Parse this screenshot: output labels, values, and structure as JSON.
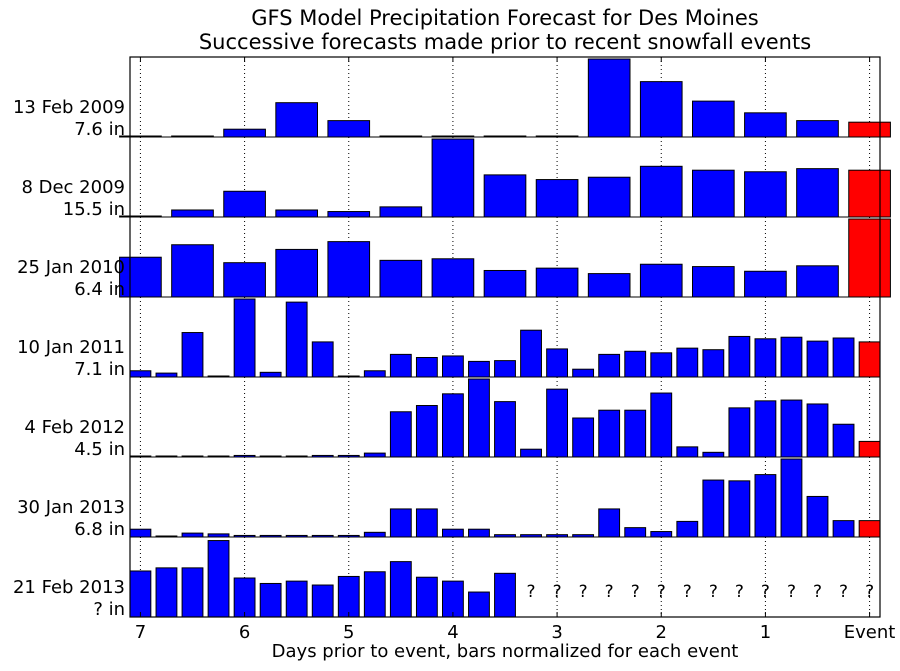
{
  "chart_data": {
    "type": "bar",
    "title": "GFS Model Precipitation Forecast for Des Moines",
    "subtitle": "Successive forecasts made prior to recent snowfall events",
    "xlabel": "Days prior to event, bars normalized for each event",
    "x_ticks": [
      "7",
      "6",
      "5",
      "4",
      "3",
      "2",
      "1",
      "Event"
    ],
    "x_tick_positions": [
      7,
      6,
      5,
      4,
      3,
      2,
      1,
      0
    ],
    "xlim": [
      7.1,
      -0.1
    ],
    "grid": "vertical dotted",
    "bar_colors": {
      "forecast": "#0000ff",
      "event": "#ff0000"
    },
    "missing_marker": "?",
    "panels": [
      {
        "name": "13 Feb 2009",
        "amount": "7.6 in",
        "x": [
          7.0,
          6.5,
          6.0,
          5.5,
          5.0,
          4.5,
          4.0,
          3.5,
          3.0,
          2.5,
          2.0,
          1.5,
          1.0,
          0.5,
          0.0
        ],
        "values": [
          0.01,
          0.01,
          0.1,
          0.44,
          0.21,
          0.01,
          0.01,
          0.01,
          0.01,
          1.0,
          0.71,
          0.46,
          0.31,
          0.21,
          0.19
        ]
      },
      {
        "name": "8 Dec 2009",
        "amount": "15.5 in",
        "x": [
          7.0,
          6.5,
          6.0,
          5.5,
          5.0,
          4.5,
          4.0,
          3.5,
          3.0,
          2.5,
          2.0,
          1.5,
          1.0,
          0.5,
          0.0
        ],
        "values": [
          0.01,
          0.09,
          0.33,
          0.09,
          0.07,
          0.13,
          1.0,
          0.54,
          0.48,
          0.51,
          0.65,
          0.6,
          0.58,
          0.62,
          0.6
        ]
      },
      {
        "name": "25 Jan 2010",
        "amount": "6.4 in",
        "x": [
          7.0,
          6.5,
          6.0,
          5.5,
          5.0,
          4.5,
          4.0,
          3.5,
          3.0,
          2.5,
          2.0,
          1.5,
          1.0,
          0.5,
          0.0
        ],
        "values": [
          0.51,
          0.67,
          0.44,
          0.61,
          0.71,
          0.47,
          0.49,
          0.34,
          0.37,
          0.3,
          0.42,
          0.39,
          0.33,
          0.4,
          1.0
        ]
      },
      {
        "name": "10 Jan 2011",
        "amount": "7.1 in",
        "x": [
          7.0,
          6.75,
          6.5,
          6.25,
          6.0,
          5.75,
          5.5,
          5.25,
          5.0,
          4.75,
          4.5,
          4.25,
          4.0,
          3.75,
          3.5,
          3.25,
          3.0,
          2.75,
          2.5,
          2.25,
          2.0,
          1.75,
          1.5,
          1.25,
          1.0,
          0.75,
          0.5,
          0.25,
          0.0
        ],
        "values": [
          0.08,
          0.05,
          0.57,
          0.01,
          1.0,
          0.06,
          0.96,
          0.45,
          0.01,
          0.08,
          0.29,
          0.25,
          0.27,
          0.2,
          0.21,
          0.6,
          0.36,
          0.1,
          0.29,
          0.33,
          0.31,
          0.37,
          0.35,
          0.52,
          0.49,
          0.51,
          0.46,
          0.5,
          0.45
        ]
      },
      {
        "name": "4 Feb 2012",
        "amount": "4.5 in",
        "x": [
          7.0,
          6.75,
          6.5,
          6.25,
          6.0,
          5.75,
          5.5,
          5.25,
          5.0,
          4.75,
          4.5,
          4.25,
          4.0,
          3.75,
          3.5,
          3.25,
          3.0,
          2.75,
          2.5,
          2.25,
          2.0,
          1.75,
          1.5,
          1.25,
          1.0,
          0.75,
          0.5,
          0.25,
          0.0
        ],
        "values": [
          0.01,
          0.01,
          0.01,
          0.01,
          0.02,
          0.01,
          0.01,
          0.02,
          0.02,
          0.05,
          0.58,
          0.66,
          0.81,
          1.0,
          0.71,
          0.1,
          0.87,
          0.5,
          0.6,
          0.6,
          0.82,
          0.13,
          0.06,
          0.63,
          0.72,
          0.73,
          0.68,
          0.42,
          0.2
        ]
      },
      {
        "name": "30 Jan 2013",
        "amount": "6.8 in",
        "x": [
          7.0,
          6.75,
          6.5,
          6.25,
          6.0,
          5.75,
          5.5,
          5.25,
          5.0,
          4.75,
          4.5,
          4.25,
          4.0,
          3.75,
          3.5,
          3.25,
          3.0,
          2.75,
          2.5,
          2.25,
          2.0,
          1.75,
          1.5,
          1.25,
          1.0,
          0.75,
          0.5,
          0.25,
          0.0
        ],
        "values": [
          0.1,
          0.01,
          0.05,
          0.04,
          0.02,
          0.02,
          0.02,
          0.02,
          0.02,
          0.06,
          0.36,
          0.36,
          0.1,
          0.1,
          0.03,
          0.03,
          0.03,
          0.03,
          0.36,
          0.12,
          0.07,
          0.2,
          0.73,
          0.72,
          0.8,
          1.0,
          0.52,
          0.21,
          0.21
        ]
      },
      {
        "name": "21 Feb 2013",
        "amount": "? in",
        "x": [
          7.0,
          6.75,
          6.5,
          6.25,
          6.0,
          5.75,
          5.5,
          5.25,
          5.0,
          4.75,
          4.5,
          4.25,
          4.0,
          3.75,
          3.5
        ],
        "values": [
          0.59,
          0.63,
          0.63,
          0.98,
          0.5,
          0.43,
          0.46,
          0.41,
          0.52,
          0.58,
          0.71,
          0.51,
          0.46,
          0.32,
          0.56
        ],
        "missing_x": [
          3.25,
          3.0,
          2.75,
          2.5,
          2.25,
          2.0,
          1.75,
          1.5,
          1.25,
          1.0,
          0.75,
          0.5,
          0.25,
          0.0
        ]
      }
    ]
  }
}
